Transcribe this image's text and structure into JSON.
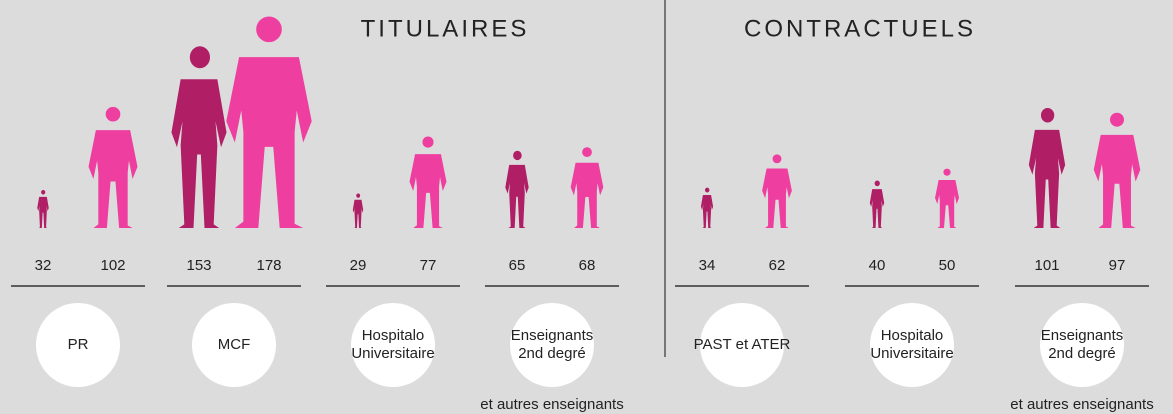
{
  "chart_data": [
    {
      "type": "pictogram",
      "title": "TITULAIRES",
      "categories": [
        [
          "PR"
        ],
        [
          "MCF"
        ],
        [
          "Hospitalo",
          "Universitaire"
        ],
        [
          "Enseignants",
          "2nd degré"
        ]
      ],
      "series": [
        {
          "color": "#b01e66",
          "values": [
            32,
            153,
            29,
            65
          ]
        },
        {
          "color": "#ee3fa0",
          "values": [
            102,
            178,
            77,
            68
          ]
        }
      ],
      "footnote": "et autres enseignants"
    },
    {
      "type": "pictogram",
      "title": "CONTRACTUELS",
      "categories": [
        [
          "PAST et ATER"
        ],
        [
          "Hospitalo",
          "Universitaire"
        ],
        [
          "Enseignants",
          "2nd degré"
        ]
      ],
      "series": [
        {
          "color": "#b01e66",
          "values": [
            34,
            40,
            101
          ]
        },
        {
          "color": "#ee3fa0",
          "values": [
            62,
            50,
            97
          ]
        }
      ],
      "footnote": "et autres enseignants"
    }
  ]
}
